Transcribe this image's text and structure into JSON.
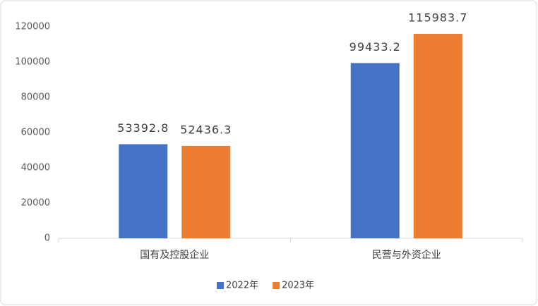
{
  "chart_data": {
    "type": "bar",
    "categories": [
      "国有及控股企业",
      "民营与外资企业"
    ],
    "series": [
      {
        "name": "2022年",
        "color": "#4472c4",
        "values": [
          53392.8,
          99433.2
        ]
      },
      {
        "name": "2023年",
        "color": "#ed7d31",
        "values": [
          52436.3,
          115983.7
        ]
      }
    ],
    "ylim": [
      0,
      120000
    ],
    "yticks": [
      0,
      20000,
      40000,
      60000,
      80000,
      100000,
      120000
    ],
    "grid": false,
    "legend": "bottom",
    "data_labels": true
  }
}
